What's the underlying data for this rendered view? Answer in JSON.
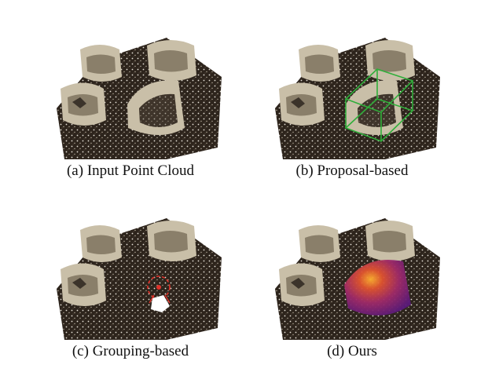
{
  "figure": {
    "panels": [
      {
        "caption": "(a)  Input Point Cloud"
      },
      {
        "caption": "(b)  Proposal-based"
      },
      {
        "caption": "(c)  Grouping-based"
      },
      {
        "caption": "(d)  Ours"
      }
    ]
  },
  "colors": {
    "floor": "#2d241c",
    "chair": "#c9bfa8",
    "chair_shadow": "#8a7f6a",
    "box": "#2fae3a",
    "group_marker": "#e0322a",
    "heatmap_low": "#5a1a7a",
    "heatmap_high": "#ffb030"
  }
}
